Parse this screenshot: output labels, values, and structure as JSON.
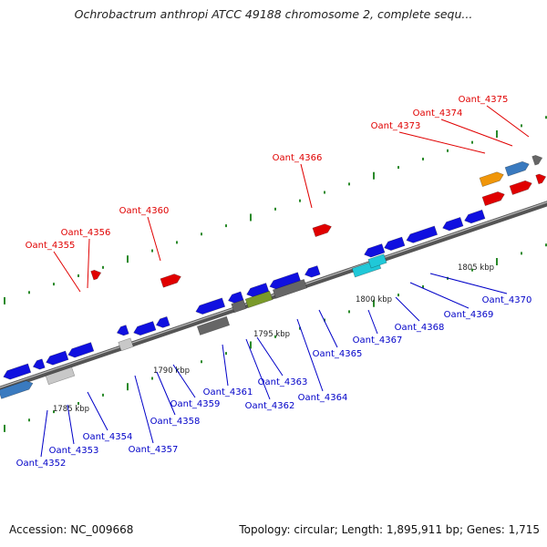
{
  "title": "Ochrobactrum anthropi ATCC 49188 chromosome 2, complete sequ...",
  "footer": {
    "accession": "Accession: NC_009668",
    "summary": "Topology: circular; Length: 1,895,911 bp; Genes: 1,715"
  },
  "colors": {
    "forward_label": "#e00000",
    "reverse_label": "#0000c8",
    "backbone": "#777777",
    "tick": "#2a8a2a"
  },
  "scale_labels": [
    "1785 kbp",
    "1790 kbp",
    "1795 kbp",
    "1800 kbp",
    "1805 kbp"
  ],
  "labels_upper": [
    "Oant_4355",
    "Oant_4356",
    "Oant_4360",
    "Oant_4366",
    "Oant_4373",
    "Oant_4374",
    "Oant_4375"
  ],
  "labels_lower": [
    "Oant_4352",
    "Oant_4353",
    "Oant_4354",
    "Oant_4357",
    "Oant_4358",
    "Oant_4359",
    "Oant_4361",
    "Oant_4362",
    "Oant_4363",
    "Oant_4364",
    "Oant_4365",
    "Oant_4367",
    "Oant_4368",
    "Oant_4369",
    "Oant_4370"
  ]
}
